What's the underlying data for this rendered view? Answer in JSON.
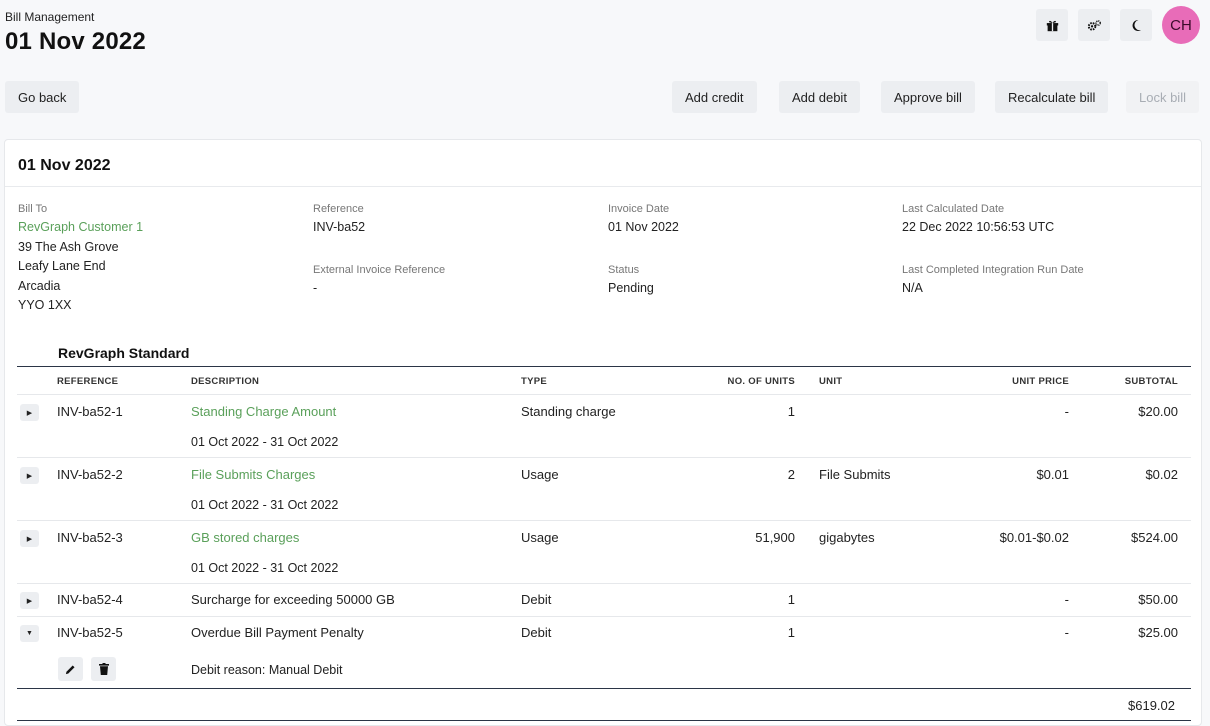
{
  "header": {
    "subtitle": "Bill Management",
    "title": "01 Nov 2022",
    "avatar_initials": "CH",
    "icons": [
      "gift-icon",
      "cogs-icon",
      "moon-icon"
    ]
  },
  "actions": {
    "go_back": "Go back",
    "add_credit": "Add credit",
    "add_debit": "Add debit",
    "approve_bill": "Approve bill",
    "recalculate_bill": "Recalculate bill",
    "lock_bill": "Lock bill"
  },
  "card": {
    "title": "01 Nov 2022",
    "bill_to": {
      "label": "Bill To",
      "customer": "RevGraph Customer 1",
      "address": [
        "39 The Ash Grove",
        "Leafy Lane End",
        "Arcadia",
        "YYO 1XX"
      ]
    },
    "reference": {
      "label": "Reference",
      "value": "INV-ba52"
    },
    "external_reference": {
      "label": "External Invoice Reference",
      "value": "-"
    },
    "invoice_date": {
      "label": "Invoice Date",
      "value": "01 Nov 2022"
    },
    "status": {
      "label": "Status",
      "value": "Pending"
    },
    "last_calculated": {
      "label": "Last Calculated Date",
      "value": "22 Dec 2022 10:56:53 UTC"
    },
    "last_integration": {
      "label": "Last Completed Integration Run Date",
      "value": "N/A"
    }
  },
  "table": {
    "section_title": "RevGraph Standard",
    "columns": {
      "reference": "REFERENCE",
      "description": "DESCRIPTION",
      "type": "TYPE",
      "units": "NO. OF UNITS",
      "unit": "UNIT",
      "unit_price": "UNIT PRICE",
      "subtotal": "SUBTOTAL"
    },
    "rows": [
      {
        "reference": "INV-ba52-1",
        "description": "Standing Charge Amount",
        "period": "01 Oct 2022 - 31 Oct 2022",
        "type": "Standing charge",
        "units": "1",
        "unit": "",
        "unit_price": "-",
        "subtotal": "$20.00"
      },
      {
        "reference": "INV-ba52-2",
        "description": "File Submits Charges",
        "period": "01 Oct 2022 - 31 Oct 2022",
        "type": "Usage",
        "units": "2",
        "unit": "File Submits",
        "unit_price": "$0.01",
        "subtotal": "$0.02"
      },
      {
        "reference": "INV-ba52-3",
        "description": "GB stored charges",
        "period": "01 Oct 2022 - 31 Oct 2022",
        "type": "Usage",
        "units": "51,900",
        "unit": "gigabytes",
        "unit_price": "$0.01-$0.02",
        "subtotal": "$524.00"
      },
      {
        "reference": "INV-ba52-4",
        "description": "Surcharge for exceeding 50000 GB",
        "type": "Debit",
        "units": "1",
        "unit": "",
        "unit_price": "-",
        "subtotal": "$50.00"
      },
      {
        "reference": "INV-ba52-5",
        "description": "Overdue Bill Payment Penalty",
        "type": "Debit",
        "units": "1",
        "unit": "",
        "unit_price": "-",
        "subtotal": "$25.00",
        "debit_reason": "Debit reason: Manual Debit"
      }
    ],
    "total": "$619.02"
  }
}
